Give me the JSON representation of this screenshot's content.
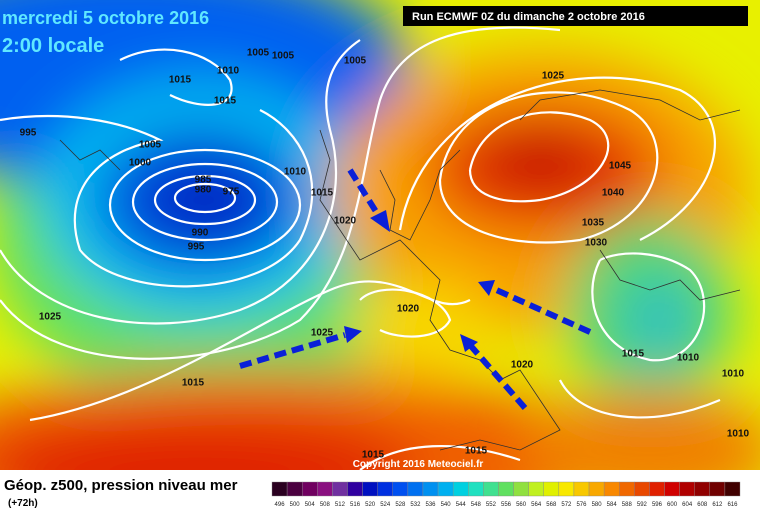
{
  "header": {
    "date": "mercredi 5 octobre 2016",
    "time": "2:00 locale",
    "run": "Run ECMWF 0Z du dimanche 2 octobre 2016"
  },
  "map": {
    "isobar_labels": [
      1015,
      1010,
      1005,
      1005,
      1005,
      1025,
      1015,
      995,
      1005,
      1000,
      985,
      980,
      975,
      990,
      995,
      1010,
      1015,
      1020,
      1045,
      1040,
      1035,
      1030,
      1020,
      1025,
      1025,
      1015,
      1015,
      1010,
      1010,
      1020,
      1010,
      1015,
      1015
    ]
  },
  "footer": {
    "title": "Géop. z500, pression niveau mer",
    "lead": "(+72h)",
    "copyright": "Copyright 2016 Meteociel.fr"
  },
  "legend": {
    "values": [
      496,
      500,
      504,
      508,
      512,
      516,
      520,
      524,
      528,
      532,
      536,
      540,
      544,
      548,
      552,
      556,
      560,
      564,
      568,
      572,
      576,
      580,
      584,
      588,
      592,
      596,
      600,
      604,
      608,
      612,
      616
    ],
    "colors": [
      "#2a0020",
      "#4b0040",
      "#700060",
      "#8a1080",
      "#7030a0",
      "#3000a0",
      "#0010c0",
      "#0030e0",
      "#0050f0",
      "#0070f0",
      "#0090f0",
      "#00b0f0",
      "#00d0e0",
      "#20e0c0",
      "#40e090",
      "#60e060",
      "#90e040",
      "#c0f020",
      "#e0f000",
      "#f8e800",
      "#f8c800",
      "#f8a800",
      "#f88800",
      "#f06800",
      "#e84800",
      "#e02000",
      "#d00000",
      "#b00000",
      "#900000",
      "#700000",
      "#400000"
    ]
  }
}
